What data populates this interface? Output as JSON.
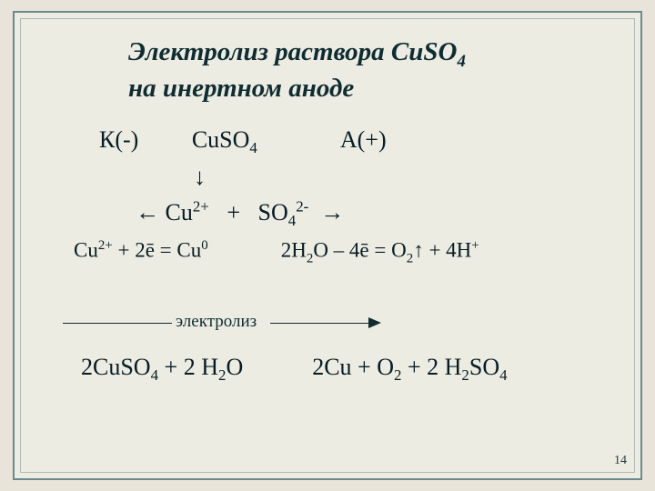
{
  "colors": {
    "background": "#ecece3",
    "frame_border": "#6b8a8f",
    "inner_border": "#aeb8b4",
    "text": "#071c24",
    "title": "#0e2c31"
  },
  "title": {
    "line1": "Электролиз раствора CuSO",
    "line1_sub": "4",
    "line2": "на инертном аноде"
  },
  "electrodes": {
    "cathode": "К(-)",
    "compound_base": "CuSO",
    "compound_sub": "4",
    "anode": "А(+)"
  },
  "arrow_down": "↓",
  "dissociation": {
    "left_arrow": "←",
    "cu_base": "Cu",
    "cu_sup": "2+",
    "plus": "+",
    "so_base": "SO",
    "so_sub": "4",
    "so_sup": "2-",
    "right_arrow": "→"
  },
  "cathode_rx": {
    "lhs_base": "Cu",
    "lhs_sup": "2+",
    "plus": " + 2ē = ",
    "rhs_base": "Cu",
    "rhs_sup": "0"
  },
  "anode_rx": {
    "h2o_base_2": "2H",
    "h2o_sub": "2",
    "h2o_o": "O – 4ē = O",
    "o2_sub": "2",
    "arrow": "↑ + 4H",
    "h_sup": "+"
  },
  "elabel": "электролиз",
  "overall": {
    "lhs_2cuso4": "2CuSO",
    "lhs_2cuso4_sub": "4",
    "lhs_plus": " + 2 H",
    "lhs_h2_sub": "2",
    "lhs_o": "O",
    "rhs_2cu": "2Cu + O",
    "rhs_o2_sub": "2",
    "rhs_plus": " + 2 H",
    "rhs_h2_sub": "2",
    "rhs_so4": "SO",
    "rhs_so4_sub": "4"
  },
  "page_number": "14"
}
